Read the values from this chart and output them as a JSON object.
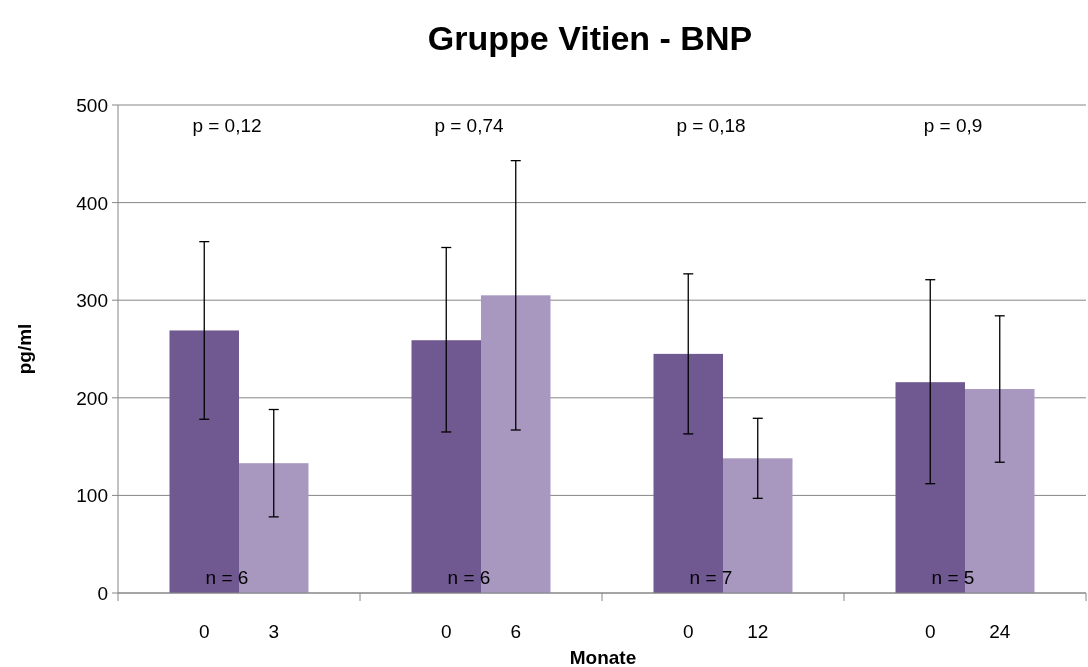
{
  "chart_data": {
    "type": "bar",
    "title": "Gruppe Vitien - BNP",
    "xlabel": "Monate",
    "ylabel": "pg/ml",
    "categories": [
      "0",
      "3",
      "0",
      "6",
      "0",
      "12",
      "0",
      "24"
    ],
    "values": [
      269,
      133,
      259,
      305,
      245,
      138,
      216,
      209
    ],
    "colors": [
      "#705890",
      "#a898c0",
      "#705890",
      "#a898c0",
      "#705890",
      "#a898c0",
      "#705890",
      "#a898c0"
    ],
    "errors": [
      [
        178,
        360
      ],
      [
        78,
        188
      ],
      [
        165,
        354
      ],
      [
        167,
        443
      ],
      [
        163,
        327
      ],
      [
        97,
        179
      ],
      [
        112,
        321
      ],
      [
        134,
        284
      ]
    ],
    "ylim": [
      0,
      500
    ],
    "yticks": [
      0,
      100,
      200,
      300,
      400,
      500
    ],
    "grid": "y",
    "annotations": [
      "p = 0,12",
      "p = 0,74",
      "p = 0,18",
      "p = 0,9",
      "n = 6",
      "n = 6",
      "n = 7",
      "n = 5"
    ]
  }
}
